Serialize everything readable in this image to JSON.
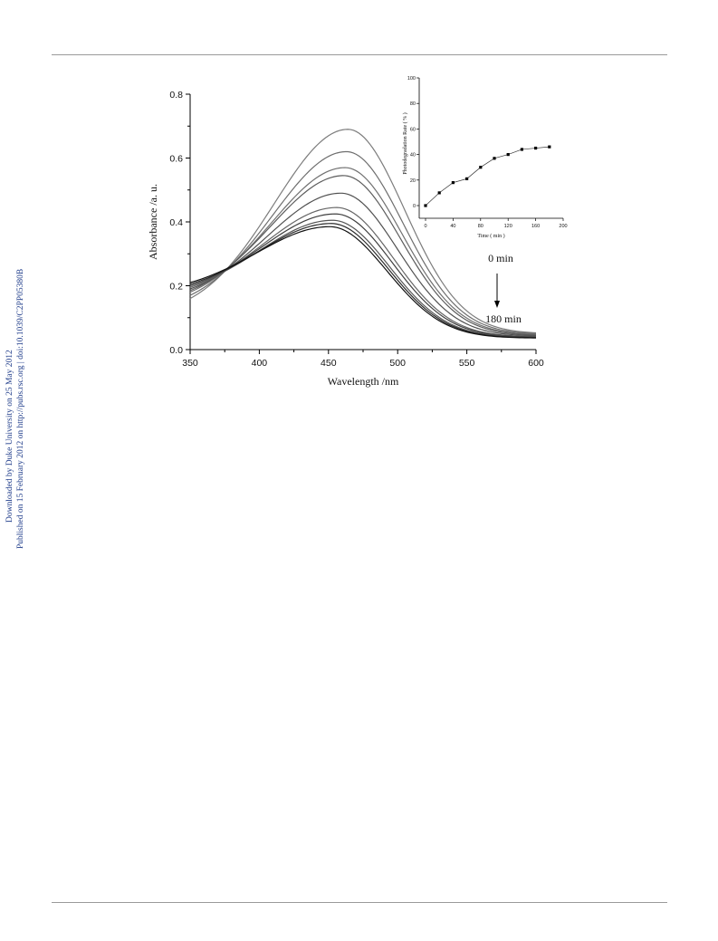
{
  "side_notes": {
    "downloaded": "Downloaded by Duke University on 25 May 2012",
    "published": "Published on 15 February 2012 on http://pubs.rsc.org | doi:10.1039/C2PP05380B"
  },
  "chart_data": [
    {
      "type": "line",
      "xlabel": "Wavelength /nm",
      "ylabel": "Absorbance /a. u.",
      "xlim": [
        350,
        600
      ],
      "ylim": [
        0.0,
        0.8
      ],
      "xticks": [
        "350",
        "400",
        "450",
        "500",
        "550",
        "600"
      ],
      "yticks": [
        "0.0",
        "0.2",
        "0.4",
        "0.6",
        "0.8"
      ],
      "annotations": {
        "start": "0 min",
        "end": "180 min"
      },
      "series": [
        {
          "peak_x": 464,
          "peak_y": 0.69,
          "start_y": 0.16,
          "end_y": 0.05,
          "color": "#7c7c7c"
        },
        {
          "peak_x": 463,
          "peak_y": 0.62,
          "start_y": 0.17,
          "end_y": 0.048,
          "color": "#6e6e6e"
        },
        {
          "peak_x": 462,
          "peak_y": 0.57,
          "start_y": 0.18,
          "end_y": 0.046,
          "color": "#707070"
        },
        {
          "peak_x": 461,
          "peak_y": 0.545,
          "start_y": 0.185,
          "end_y": 0.044,
          "color": "#5c5c5c"
        },
        {
          "peak_x": 459,
          "peak_y": 0.49,
          "start_y": 0.19,
          "end_y": 0.042,
          "color": "#505050"
        },
        {
          "peak_x": 456,
          "peak_y": 0.445,
          "start_y": 0.195,
          "end_y": 0.04,
          "color": "#666666"
        },
        {
          "peak_x": 455,
          "peak_y": 0.425,
          "start_y": 0.2,
          "end_y": 0.039,
          "color": "#3f3f3f"
        },
        {
          "peak_x": 453,
          "peak_y": 0.405,
          "start_y": 0.2,
          "end_y": 0.038,
          "color": "#555555"
        },
        {
          "peak_x": 452,
          "peak_y": 0.395,
          "start_y": 0.205,
          "end_y": 0.037,
          "color": "#2a2a2a"
        },
        {
          "peak_x": 451,
          "peak_y": 0.385,
          "start_y": 0.21,
          "end_y": 0.036,
          "color": "#111111"
        }
      ]
    },
    {
      "type": "scatter",
      "xlabel": "Time ( min )",
      "ylabel": "Photodegradation Rate ( % )",
      "xlim": [
        0,
        200
      ],
      "ylim": [
        0,
        100
      ],
      "xticks": [
        "0",
        "40",
        "80",
        "120",
        "160",
        "200"
      ],
      "yticks": [
        "0",
        "20",
        "40",
        "60",
        "80",
        "100"
      ],
      "x": [
        0,
        20,
        40,
        60,
        80,
        100,
        120,
        140,
        160,
        180
      ],
      "y": [
        0,
        10,
        18,
        21,
        30,
        37,
        40,
        44,
        45,
        46
      ]
    }
  ]
}
